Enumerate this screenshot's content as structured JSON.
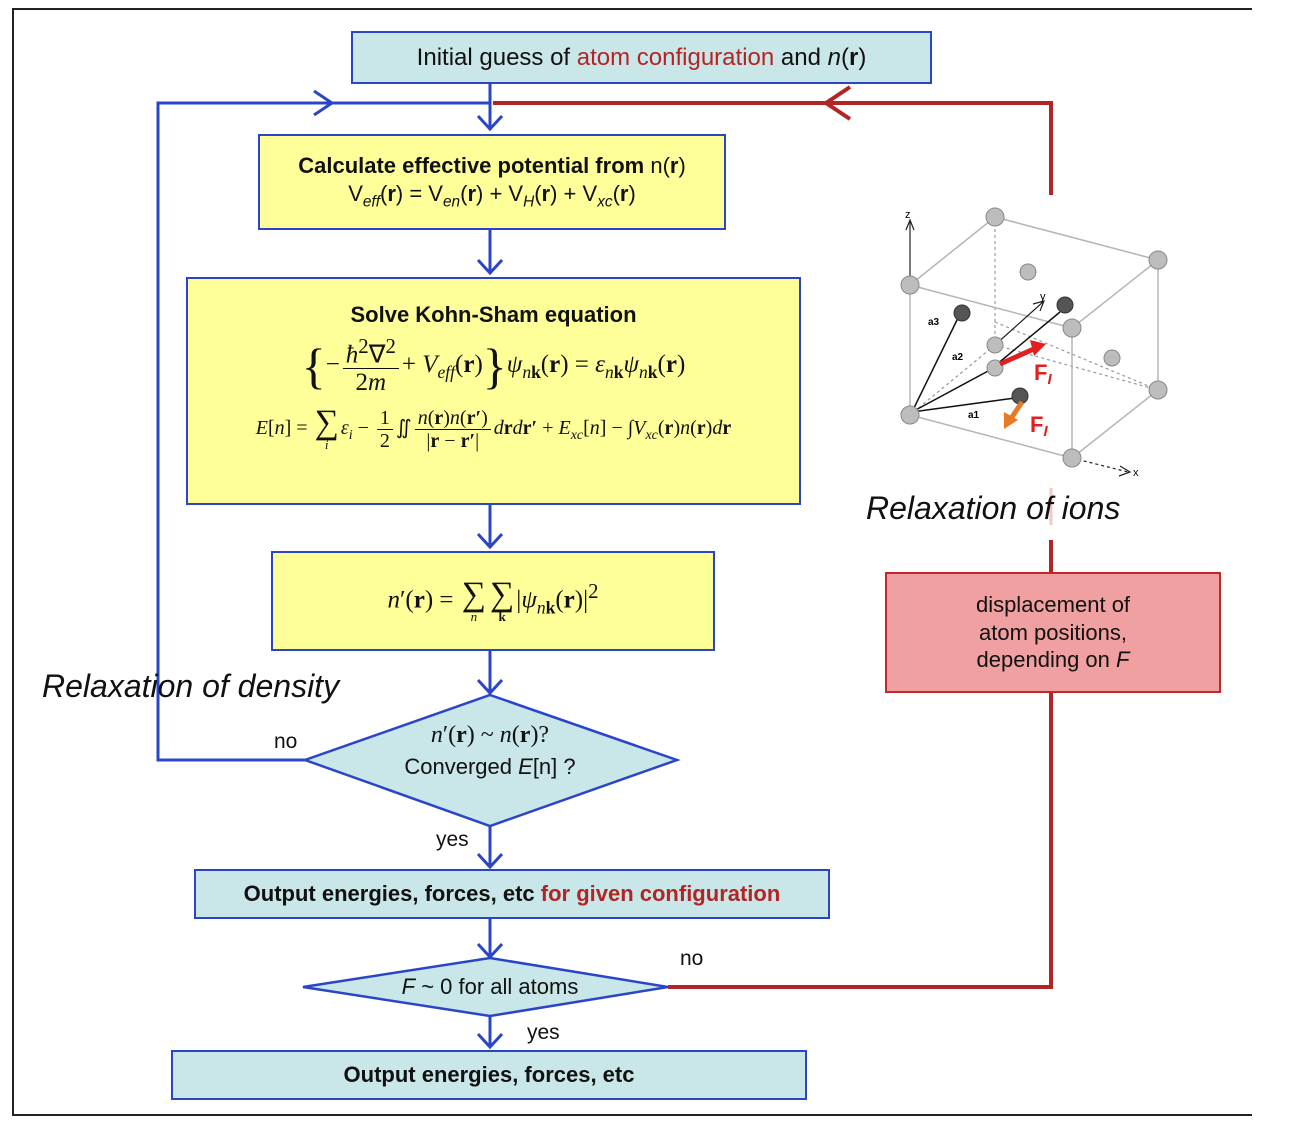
{
  "boxes": {
    "initial": {
      "part1": "Initial guess of ",
      "part2_red": "atom configuration",
      "part3": " and ",
      "n": "n",
      "paren_open": "(",
      "r": "r",
      "paren_close": ")"
    },
    "veff": {
      "title_bold": "Calculate effective potential from ",
      "title_rest_n": "n",
      "paren_open": "(",
      "r": "r",
      "paren_close": ")",
      "V": "V",
      "eff": "eff",
      "en": "en",
      "H": "H",
      "xc": "xc",
      "eq_part1": ") = ",
      "plus": ") + "
    },
    "ks": {
      "title": "Solve Kohn-Sham equation"
    },
    "output_config": {
      "part1": "Output energies, forces, etc ",
      "part2_red": "for given configuration"
    },
    "final_output": {
      "text": "Output energies, forces, etc"
    },
    "displacement": {
      "line1": "displacement of",
      "line2": "atom positions,",
      "line3a": "depending on ",
      "line3F": "F"
    }
  },
  "diamonds": {
    "converge": {
      "line2a": "Converged ",
      "E": "E",
      "line2b": "[n] ?"
    },
    "force": {
      "F": "F",
      "rest": " ~ 0 for all atoms"
    }
  },
  "labels": {
    "relaxation_density": "Relaxation of density",
    "relaxation_ions": "Relaxation of ions",
    "no": "no",
    "yes": "yes"
  },
  "lattice": {
    "axis_x": "x",
    "axis_y": "y",
    "axis_z": "z",
    "a1": "a1",
    "a2": "a2",
    "a3": "a3",
    "force_symbol": "F",
    "force_index": "I"
  },
  "colors": {
    "box_teal": "#c9e6e8",
    "box_yellow": "#ffff99",
    "box_pink": "#f0a0a0",
    "flow_blue": "#2b45c8",
    "loop_red": "#b32424"
  }
}
